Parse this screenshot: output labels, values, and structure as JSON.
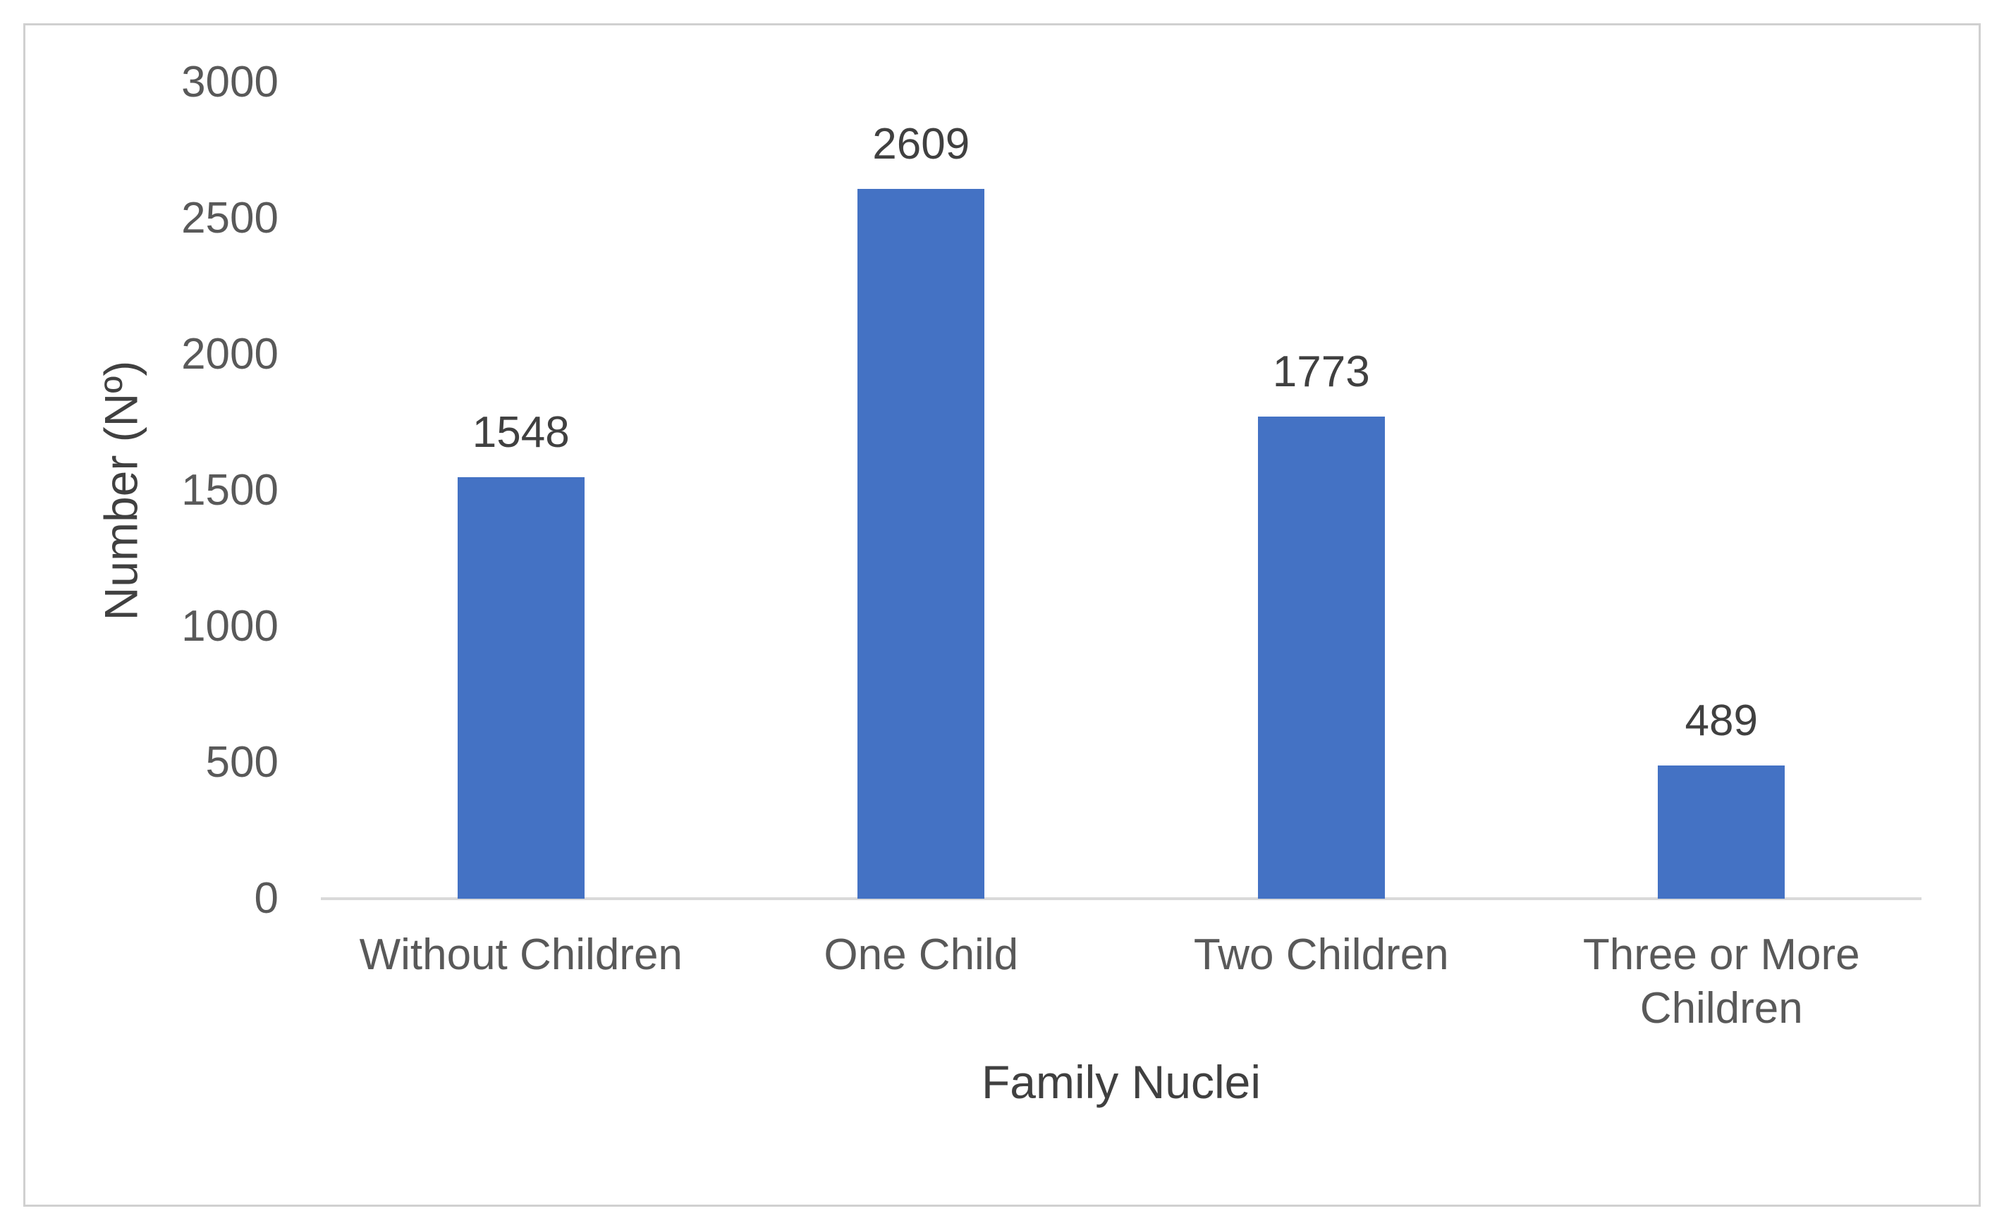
{
  "chart_data": {
    "type": "bar",
    "title": "",
    "categories": [
      "Without Children",
      "One Child",
      "Two Children",
      "Three or More Children"
    ],
    "values": [
      1548,
      2609,
      1773,
      489
    ],
    "data_labels": [
      "1548",
      "2609",
      "1773",
      "489"
    ],
    "xlabel": "Family Nuclei",
    "ylabel": "Number (Nº)",
    "ylim": [
      0,
      3000
    ],
    "yticks": [
      "0",
      "500",
      "1000",
      "1500",
      "2000",
      "2500",
      "3000"
    ],
    "grid": false,
    "legend": false,
    "bar_color": "#4472C4",
    "axis_line_color": "#D9D9D9",
    "tick_text_color": "#595959",
    "label_text_color": "#404040",
    "frame_border_color": "#D0D0D0",
    "background_color": "#FFFFFF"
  }
}
